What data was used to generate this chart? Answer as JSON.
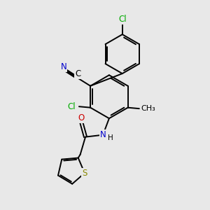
{
  "background_color": "#e8e8e8",
  "bond_color": "#000000",
  "bond_width": 1.4,
  "atom_colors": {
    "N": "#0000cc",
    "O": "#cc0000",
    "S": "#888800",
    "Cl": "#00aa00",
    "C": "#000000",
    "H": "#000000"
  },
  "font_size": 8.5,
  "figsize": [
    3.0,
    3.0
  ],
  "dpi": 100,
  "xlim": [
    0,
    10
  ],
  "ylim": [
    0,
    10
  ]
}
